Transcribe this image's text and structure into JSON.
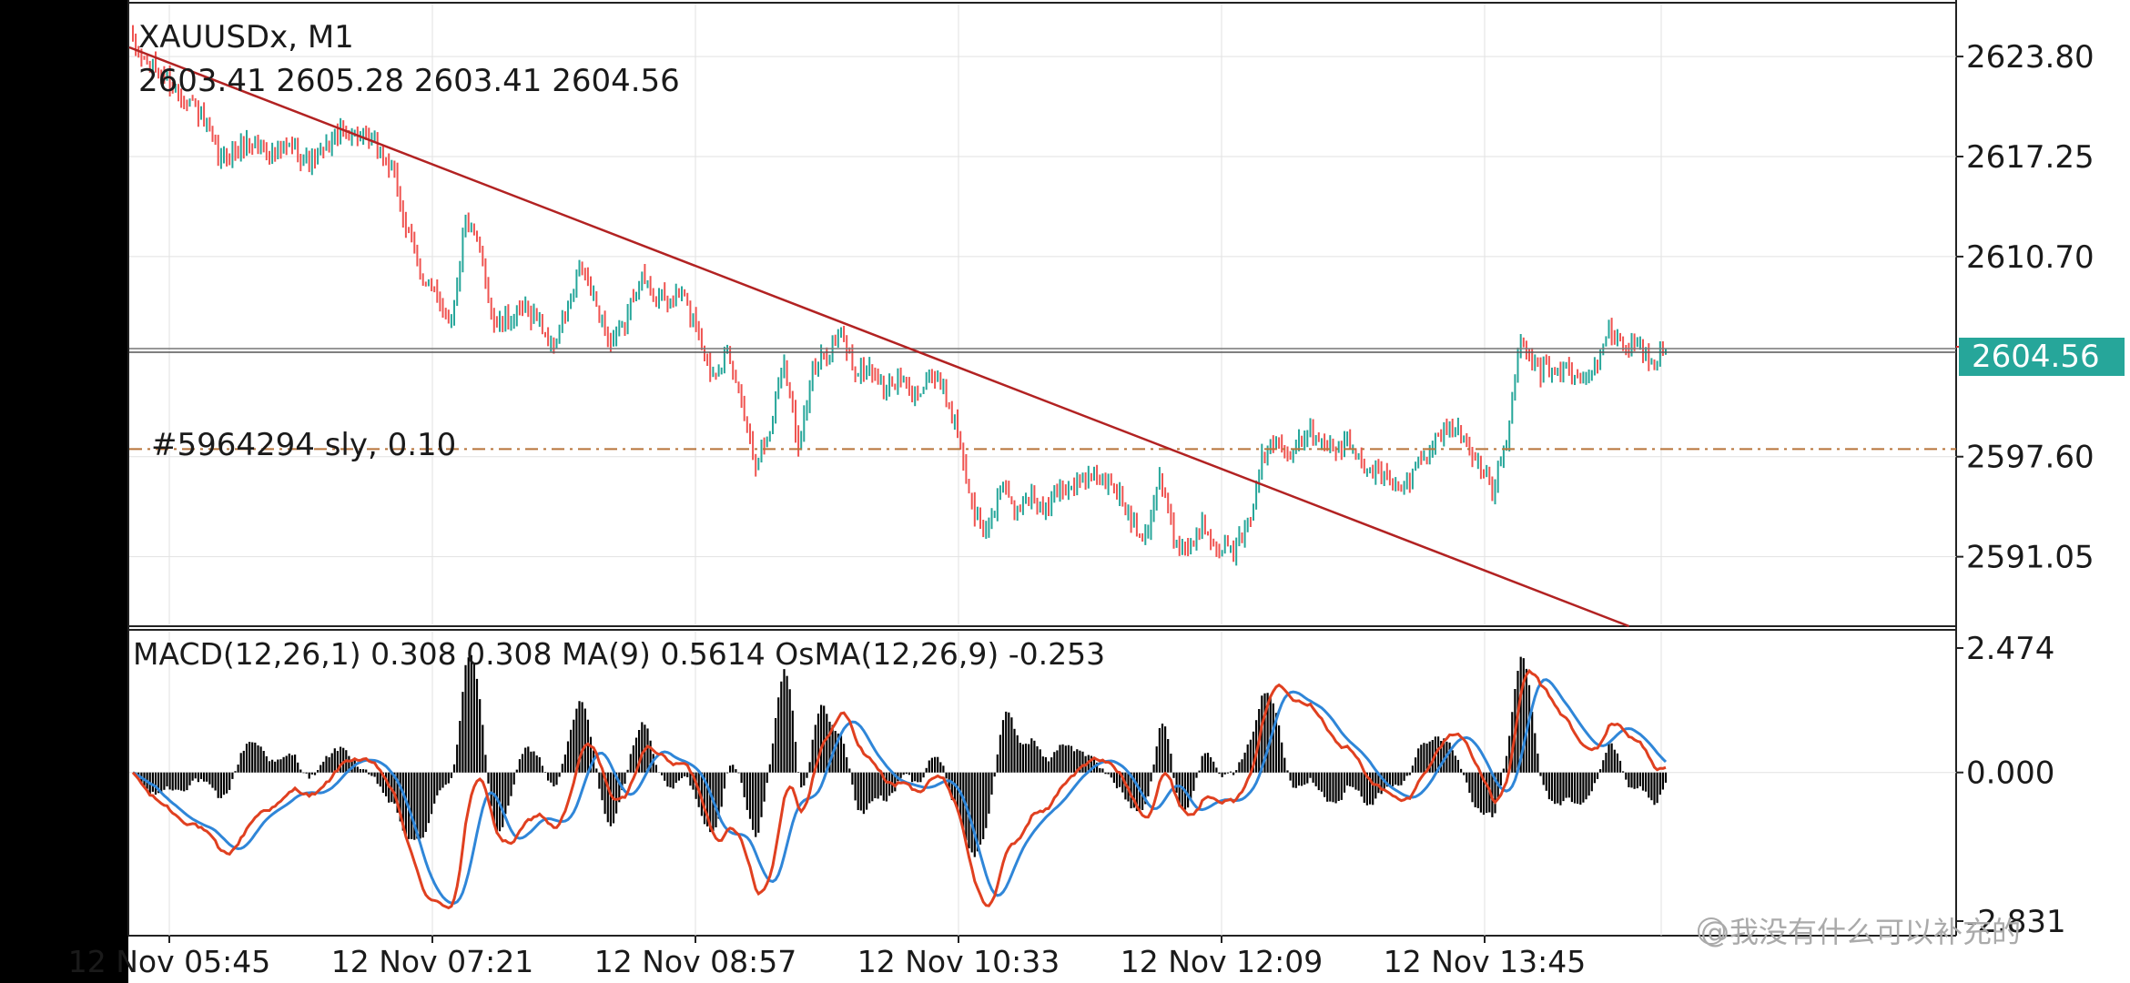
{
  "header": {
    "symbol_line": "XAUUSDx, M1",
    "ohlc_line": "2603.41 2605.28 2603.41 2604.56"
  },
  "order_line_label": "#5964294 sly, 0.10",
  "current_price_tag": "2604.56",
  "price_axis": {
    "ticks": [
      "2623.80",
      "2617.25",
      "2610.70",
      "2597.60",
      "2591.05"
    ]
  },
  "indicator_header": "MACD(12,26,1) 0.308 0.308 MA(9) 0.5614 OsMA(12,26,9) -0.253",
  "indicator_axis": {
    "ticks": [
      "2.474",
      "0.000",
      "-2.831"
    ]
  },
  "time_axis": {
    "ticks": [
      "12 Nov 05:45",
      "12 Nov 07:21",
      "12 Nov 08:57",
      "12 Nov 10:33",
      "12 Nov 12:09",
      "12 Nov 13:45"
    ]
  },
  "watermark": "@我没有什么可以补充的",
  "colors": {
    "background": "#ffffff",
    "bull_candle": "#26a69a",
    "bear_candle": "#ef5350",
    "trendline": "#b22222",
    "price_tag_bg": "#26a69a",
    "macd_line": "#e04020",
    "signal_line": "#2f86d8",
    "histogram": "#000000",
    "order_line": "#b8743a"
  },
  "chart_data": [
    {
      "type": "candlestick",
      "title": "XAUUSDx, M1",
      "ylim": [
        2586.5,
        2627.5
      ],
      "x_ticks": [
        "12 Nov 05:45",
        "12 Nov 07:21",
        "12 Nov 08:57",
        "12 Nov 10:33",
        "12 Nov 12:09",
        "12 Nov 13:45"
      ],
      "last_close": 2604.56,
      "order_level": 2598.1,
      "trendline": {
        "start": 2624.4,
        "end": 2581.2
      },
      "close_path": [
        2624.5,
        2623.2,
        2622.8,
        2621.5,
        2621.0,
        2619.3,
        2617.0,
        2617.6,
        2618.2,
        2617.8,
        2617.4,
        2618.0,
        2616.9,
        2617.3,
        2618.5,
        2618.9,
        2618.4,
        2617.9,
        2616.1,
        2612.2,
        2609.5,
        2608.0,
        2606.5,
        2613.1,
        2611.0,
        2606.3,
        2606.6,
        2607.2,
        2606.8,
        2604.6,
        2606.9,
        2610.0,
        2607.6,
        2605.0,
        2606.2,
        2609.5,
        2608.3,
        2607.6,
        2608.2,
        2606.1,
        2603.0,
        2604.2,
        2601.8,
        2597.2,
        2599.0,
        2604.2,
        2598.4,
        2603.1,
        2604.4,
        2605.6,
        2603.0,
        2603.5,
        2602.0,
        2602.7,
        2601.4,
        2603.2,
        2601.8,
        2599.5,
        2594.4,
        2592.6,
        2595.6,
        2594.0,
        2595.3,
        2593.8,
        2595.5,
        2595.7,
        2596.1,
        2596.0,
        2595.4,
        2593.5,
        2592.5,
        2596.3,
        2592.1,
        2591.7,
        2593.2,
        2592.0,
        2591.3,
        2592.6,
        2597.3,
        2598.7,
        2598.1,
        2599.2,
        2599.0,
        2597.9,
        2598.5,
        2597.1,
        2596.7,
        2595.8,
        2595.6,
        2597.5,
        2598.5,
        2599.7,
        2598.9,
        2597.3,
        2595.3,
        2598.7,
        2605.3,
        2603.1,
        2603.3,
        2603.4,
        2602.4,
        2603.2,
        2606.0,
        2604.7,
        2605.3,
        2603.5,
        2604.56
      ]
    },
    {
      "type": "macd",
      "title": "MACD(12,26,1) 0.308 0.308 MA(9) 0.5614 OsMA(12,26,9) -0.253",
      "ylim": [
        -2.831,
        2.474
      ],
      "series": [
        {
          "name": "MACD(12,26,1)",
          "last": 0.308
        },
        {
          "name": "MA(9)",
          "last": 0.5614
        },
        {
          "name": "OsMA(12,26,9)",
          "last": -0.253
        }
      ]
    }
  ]
}
